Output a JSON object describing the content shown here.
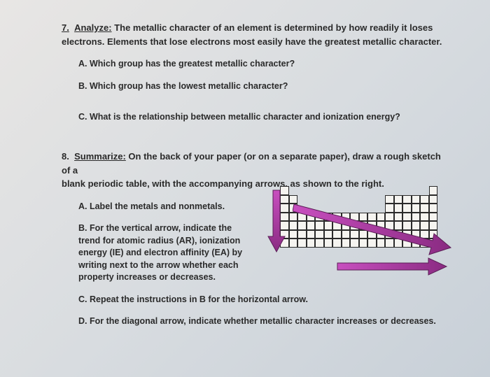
{
  "q7": {
    "number": "7.",
    "label": "Analyze:",
    "text_line1": "The metallic character of an element is determined by how readily it loses",
    "text_line2": "electrons. Elements that lose electrons most easily have the greatest metallic character.",
    "A": "A.  Which group has the greatest metallic character?",
    "B": "B.  Which group has the lowest metallic character?",
    "C": "C.  What is the relationship between metallic character and ionization energy?"
  },
  "q8": {
    "number": "8.",
    "label": "Summarize:",
    "text_line1": "On the back of your paper (or on a separate paper), draw a rough sketch of a",
    "text_line2": "blank periodic table, with the accompanying arrows, as shown to the right.",
    "A": "A.  Label the metals and nonmetals.",
    "B": "B.  For the vertical arrow, indicate the trend for atomic radius (AR), ionization energy (IE) and electron affinity (EA) by writing next to the arrow whether each property increases or decreases.",
    "C": "C.  Repeat the instructions in B for the horizontal arrow.",
    "D": "D.  For the diagonal arrow, indicate whether metallic character increases or decreases."
  },
  "diagram": {
    "colors": {
      "arrow_fill": "#b23aa8",
      "arrow_stroke": "#5a1e56",
      "cell_border": "#2a2a2a",
      "cell_bg": "#f5f4f0"
    },
    "periodic_layout": [
      [
        1,
        0,
        0,
        0,
        0,
        0,
        0,
        0,
        0,
        0,
        0,
        0,
        0,
        0,
        0,
        0,
        0,
        1
      ],
      [
        1,
        1,
        0,
        0,
        0,
        0,
        0,
        0,
        0,
        0,
        0,
        0,
        1,
        1,
        1,
        1,
        1,
        1
      ],
      [
        1,
        1,
        0,
        0,
        0,
        0,
        0,
        0,
        0,
        0,
        0,
        0,
        1,
        1,
        1,
        1,
        1,
        1
      ],
      [
        1,
        1,
        1,
        1,
        1,
        1,
        1,
        1,
        1,
        1,
        1,
        1,
        1,
        1,
        1,
        1,
        1,
        1
      ],
      [
        1,
        1,
        1,
        1,
        1,
        1,
        1,
        1,
        1,
        1,
        1,
        1,
        1,
        1,
        1,
        1,
        1,
        1
      ],
      [
        1,
        1,
        1,
        1,
        1,
        1,
        1,
        1,
        1,
        1,
        1,
        1,
        1,
        1,
        1,
        1,
        1,
        1
      ],
      [
        1,
        1,
        1,
        1,
        1,
        1,
        1,
        1,
        1,
        1,
        1,
        1,
        1,
        1,
        1,
        1,
        1,
        1
      ]
    ]
  }
}
